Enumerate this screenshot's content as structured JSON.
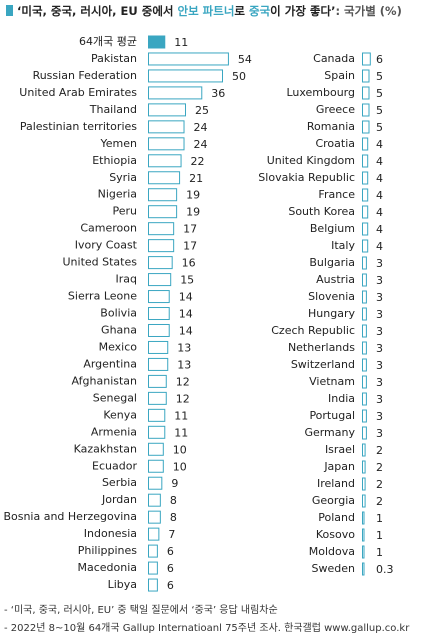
{
  "title": [
    {
      "text": "‘미국, 중국, 러시아, EU 중에서 ",
      "color": "#222222"
    },
    {
      "text": "안보 파트너",
      "color": "#3aa6c1"
    },
    {
      "text": "로 ",
      "color": "#222222"
    },
    {
      "text": "중국",
      "color": "#3aa6c1"
    },
    {
      "text": "이 가장 좋다’",
      "color": "#222222"
    },
    {
      "text": ": 국가별 (%)",
      "color": "#555555"
    }
  ],
  "chart_data": [
    {
      "type": "bar",
      "color": "#3aa6c1",
      "average": {
        "label": "64개국 평균",
        "value": 11
      },
      "categories": [
        "Pakistan",
        "Russian Federation",
        "United Arab Emirates",
        "Thailand",
        "Palestinian territories",
        "Yemen",
        "Ethiopia",
        "Syria",
        "Nigeria",
        "Peru",
        "Cameroon",
        "Ivory Coast",
        "United States",
        "Iraq",
        "Sierra Leone",
        "Bolivia",
        "Ghana",
        "Mexico",
        "Argentina",
        "Afghanistan",
        "Senegal",
        "Kenya",
        "Armenia",
        "Kazakhstan",
        "Ecuador",
        "Serbia",
        "Jordan",
        "Bosnia and Herzegovina",
        "Indonesia",
        "Philippines",
        "Macedonia",
        "Libya"
      ],
      "values": [
        54,
        50,
        36,
        25,
        24,
        24,
        22,
        21,
        19,
        19,
        17,
        17,
        16,
        15,
        14,
        14,
        14,
        13,
        13,
        12,
        12,
        11,
        11,
        10,
        10,
        9,
        8,
        8,
        7,
        6,
        6,
        6
      ]
    },
    {
      "type": "bar",
      "color": "#3aa6c1",
      "categories": [
        "Canada",
        "Spain",
        "Luxembourg",
        "Greece",
        "Romania",
        "Croatia",
        "United Kingdom",
        "Slovakia Republic",
        "France",
        "South Korea",
        "Belgium",
        "Italy",
        "Bulgaria",
        "Austria",
        "Slovenia",
        "Hungary",
        "Czech Republic",
        "Netherlands",
        "Switzerland",
        "Vietnam",
        "India",
        "Portugal",
        "Germany",
        "Israel",
        "Japan",
        "Ireland",
        "Georgia",
        "Poland",
        "Kosovo",
        "Moldova",
        "Sweden"
      ],
      "values": [
        6,
        5,
        5,
        5,
        5,
        4,
        4,
        4,
        4,
        4,
        4,
        4,
        3,
        3,
        3,
        3,
        3,
        3,
        3,
        3,
        3,
        3,
        3,
        2,
        2,
        2,
        2,
        1,
        1,
        1,
        0.3
      ]
    }
  ],
  "notes": [
    "- ‘미국, 중국, 러시아, EU’ 중 택일 질문에서 ‘중국’ 응답 내림차순",
    "- 2022년 8~10월 64개국 Gallup Internatioanl 75주년 조사. 한국갤럽 www.gallup.co.kr"
  ]
}
